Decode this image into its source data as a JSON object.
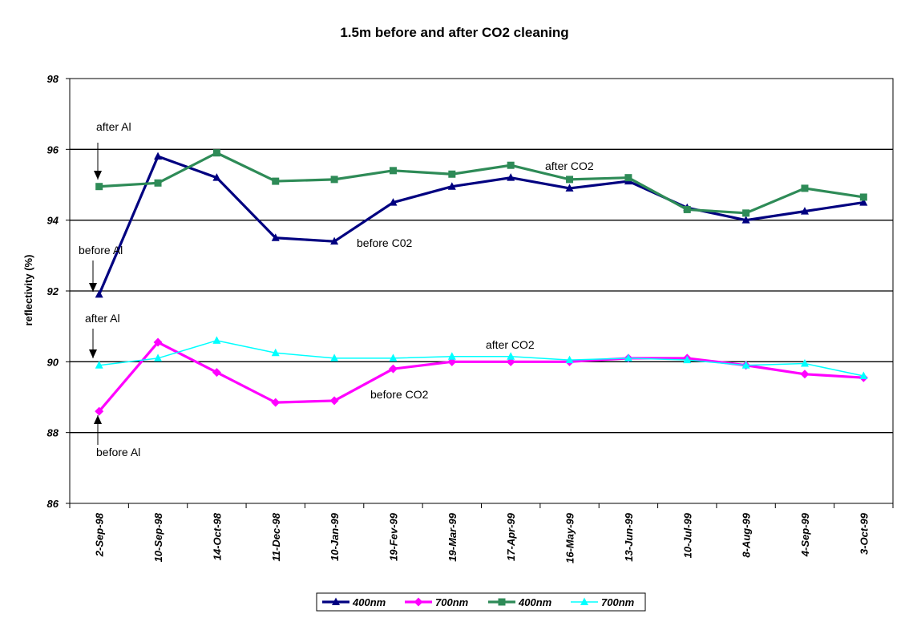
{
  "chart_data": {
    "type": "line",
    "title": "1.5m before and after CO2 cleaning",
    "xlabel": "",
    "ylabel": "reflectivity (%)",
    "ylim": [
      86,
      98
    ],
    "yticks": [
      86,
      88,
      90,
      92,
      94,
      96,
      98
    ],
    "grid": "horizontal",
    "legend_placement": "bottom",
    "categories": [
      "2-Sep-98",
      "10-Sep-98",
      "14-Oct-98",
      "11-Dec-98",
      "10-Jan-99",
      "19-Fev-99",
      "19-Mar-99",
      "17-Apr-99",
      "16-May-99",
      "13-Jun-99",
      "10-Jul-99",
      "8-Aug-99",
      "4-Sep-99",
      "3-Oct-99"
    ],
    "series": [
      {
        "name": "400nm",
        "color": "#000080",
        "marker": "triangle",
        "values": [
          91.9,
          95.8,
          95.2,
          93.5,
          93.4,
          94.5,
          94.95,
          95.2,
          94.9,
          95.1,
          94.35,
          94.0,
          94.25,
          94.5
        ]
      },
      {
        "name": "700nm",
        "color": "#FF00FF",
        "marker": "diamond",
        "values": [
          88.6,
          90.55,
          89.7,
          88.85,
          88.9,
          89.8,
          90.0,
          90.0,
          90.0,
          90.1,
          90.1,
          89.9,
          89.65,
          89.55
        ]
      },
      {
        "name": "400nm",
        "color": "#2E8B57",
        "marker": "square",
        "values": [
          94.95,
          95.05,
          95.9,
          95.1,
          95.15,
          95.4,
          95.3,
          95.55,
          95.15,
          95.2,
          94.3,
          94.2,
          94.9,
          94.65
        ]
      },
      {
        "name": "700nm",
        "color": "#00FFFF",
        "marker": "triangle",
        "values": [
          89.9,
          90.1,
          90.6,
          90.25,
          90.1,
          90.1,
          90.15,
          90.15,
          90.05,
          90.1,
          90.05,
          89.9,
          89.95,
          89.6
        ]
      }
    ],
    "annotations": [
      {
        "text": "after Al",
        "x": "2-Sep-98",
        "y": 95.0,
        "arrow": true
      },
      {
        "text": "before Al",
        "x": "2-Sep-98",
        "y": 92.0,
        "arrow": true
      },
      {
        "text": "after Al",
        "x": "2-Sep-98",
        "y": 90.0,
        "arrow": true
      },
      {
        "text": "before Al",
        "x": "2-Sep-98",
        "y": 88.6,
        "arrow": true
      },
      {
        "text": "after CO2",
        "x": "17-Apr-99",
        "y": 95.8
      },
      {
        "text": "before C02",
        "x": "10-Jan-99",
        "y": 93.3
      },
      {
        "text": "after CO2",
        "x": "17-Apr-99",
        "y": 90.5
      },
      {
        "text": "before CO2",
        "x": "19-Fev-99",
        "y": 89.1
      }
    ]
  }
}
